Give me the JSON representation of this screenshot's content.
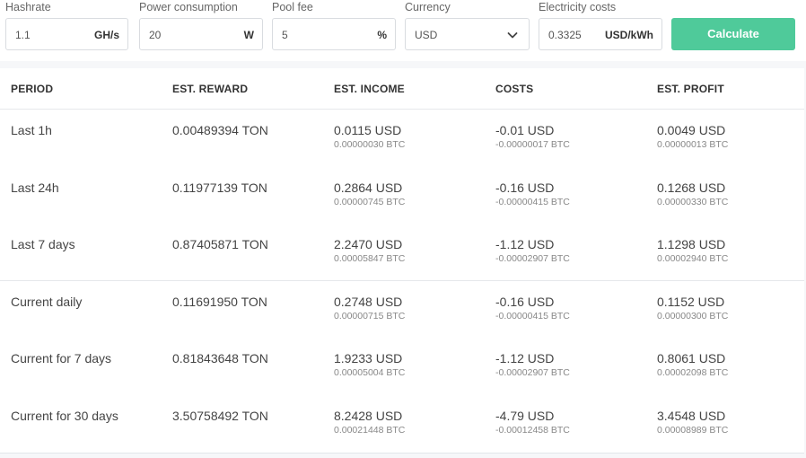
{
  "form": {
    "hashrate": {
      "label": "Hashrate",
      "value": "1.1",
      "unit": "GH/s"
    },
    "power": {
      "label": "Power consumption",
      "value": "20",
      "unit": "W"
    },
    "pool_fee": {
      "label": "Pool fee",
      "value": "5",
      "unit": "%"
    },
    "currency": {
      "label": "Currency",
      "value": "USD"
    },
    "electricity": {
      "label": "Electricity costs",
      "value": "0.3325",
      "unit": "USD/kWh"
    },
    "calculate_label": "Calculate"
  },
  "table": {
    "headers": {
      "period": "PERIOD",
      "reward": "EST. REWARD",
      "income": "EST. INCOME",
      "costs": "COSTS",
      "profit": "EST. PROFIT"
    },
    "rows": [
      {
        "period": "Last 1h",
        "reward": "0.00489394 TON",
        "income": "0.0115 USD",
        "income_btc": "0.00000030 BTC",
        "costs": "-0.01 USD",
        "costs_btc": "-0.00000017 BTC",
        "profit": "0.0049 USD",
        "profit_btc": "0.00000013 BTC"
      },
      {
        "period": "Last 24h",
        "reward": "0.11977139 TON",
        "income": "0.2864 USD",
        "income_btc": "0.00000745 BTC",
        "costs": "-0.16 USD",
        "costs_btc": "-0.00000415 BTC",
        "profit": "0.1268 USD",
        "profit_btc": "0.00000330 BTC"
      },
      {
        "period": "Last 7 days",
        "reward": "0.87405871 TON",
        "income": "2.2470 USD",
        "income_btc": "0.00005847 BTC",
        "costs": "-1.12 USD",
        "costs_btc": "-0.00002907 BTC",
        "profit": "1.1298 USD",
        "profit_btc": "0.00002940 BTC"
      },
      {
        "period": "Current daily",
        "reward": "0.11691950 TON",
        "income": "0.2748 USD",
        "income_btc": "0.00000715 BTC",
        "costs": "-0.16 USD",
        "costs_btc": "-0.00000415 BTC",
        "profit": "0.1152 USD",
        "profit_btc": "0.00000300 BTC"
      },
      {
        "period": "Current for 7 days",
        "reward": "0.81843648 TON",
        "income": "1.9233 USD",
        "income_btc": "0.00005004 BTC",
        "costs": "-1.12 USD",
        "costs_btc": "-0.00002907 BTC",
        "profit": "0.8061 USD",
        "profit_btc": "0.00002098 BTC"
      },
      {
        "period": "Current for 30 days",
        "reward": "3.50758492 TON",
        "income": "8.2428 USD",
        "income_btc": "0.00021448 BTC",
        "costs": "-4.79 USD",
        "costs_btc": "-0.00012458 BTC",
        "profit": "3.4548 USD",
        "profit_btc": "0.00008989 BTC"
      }
    ]
  },
  "icons": {
    "currency_dropdown": "chevron-down-icon"
  },
  "colors": {
    "accent": "#4fca9a"
  }
}
